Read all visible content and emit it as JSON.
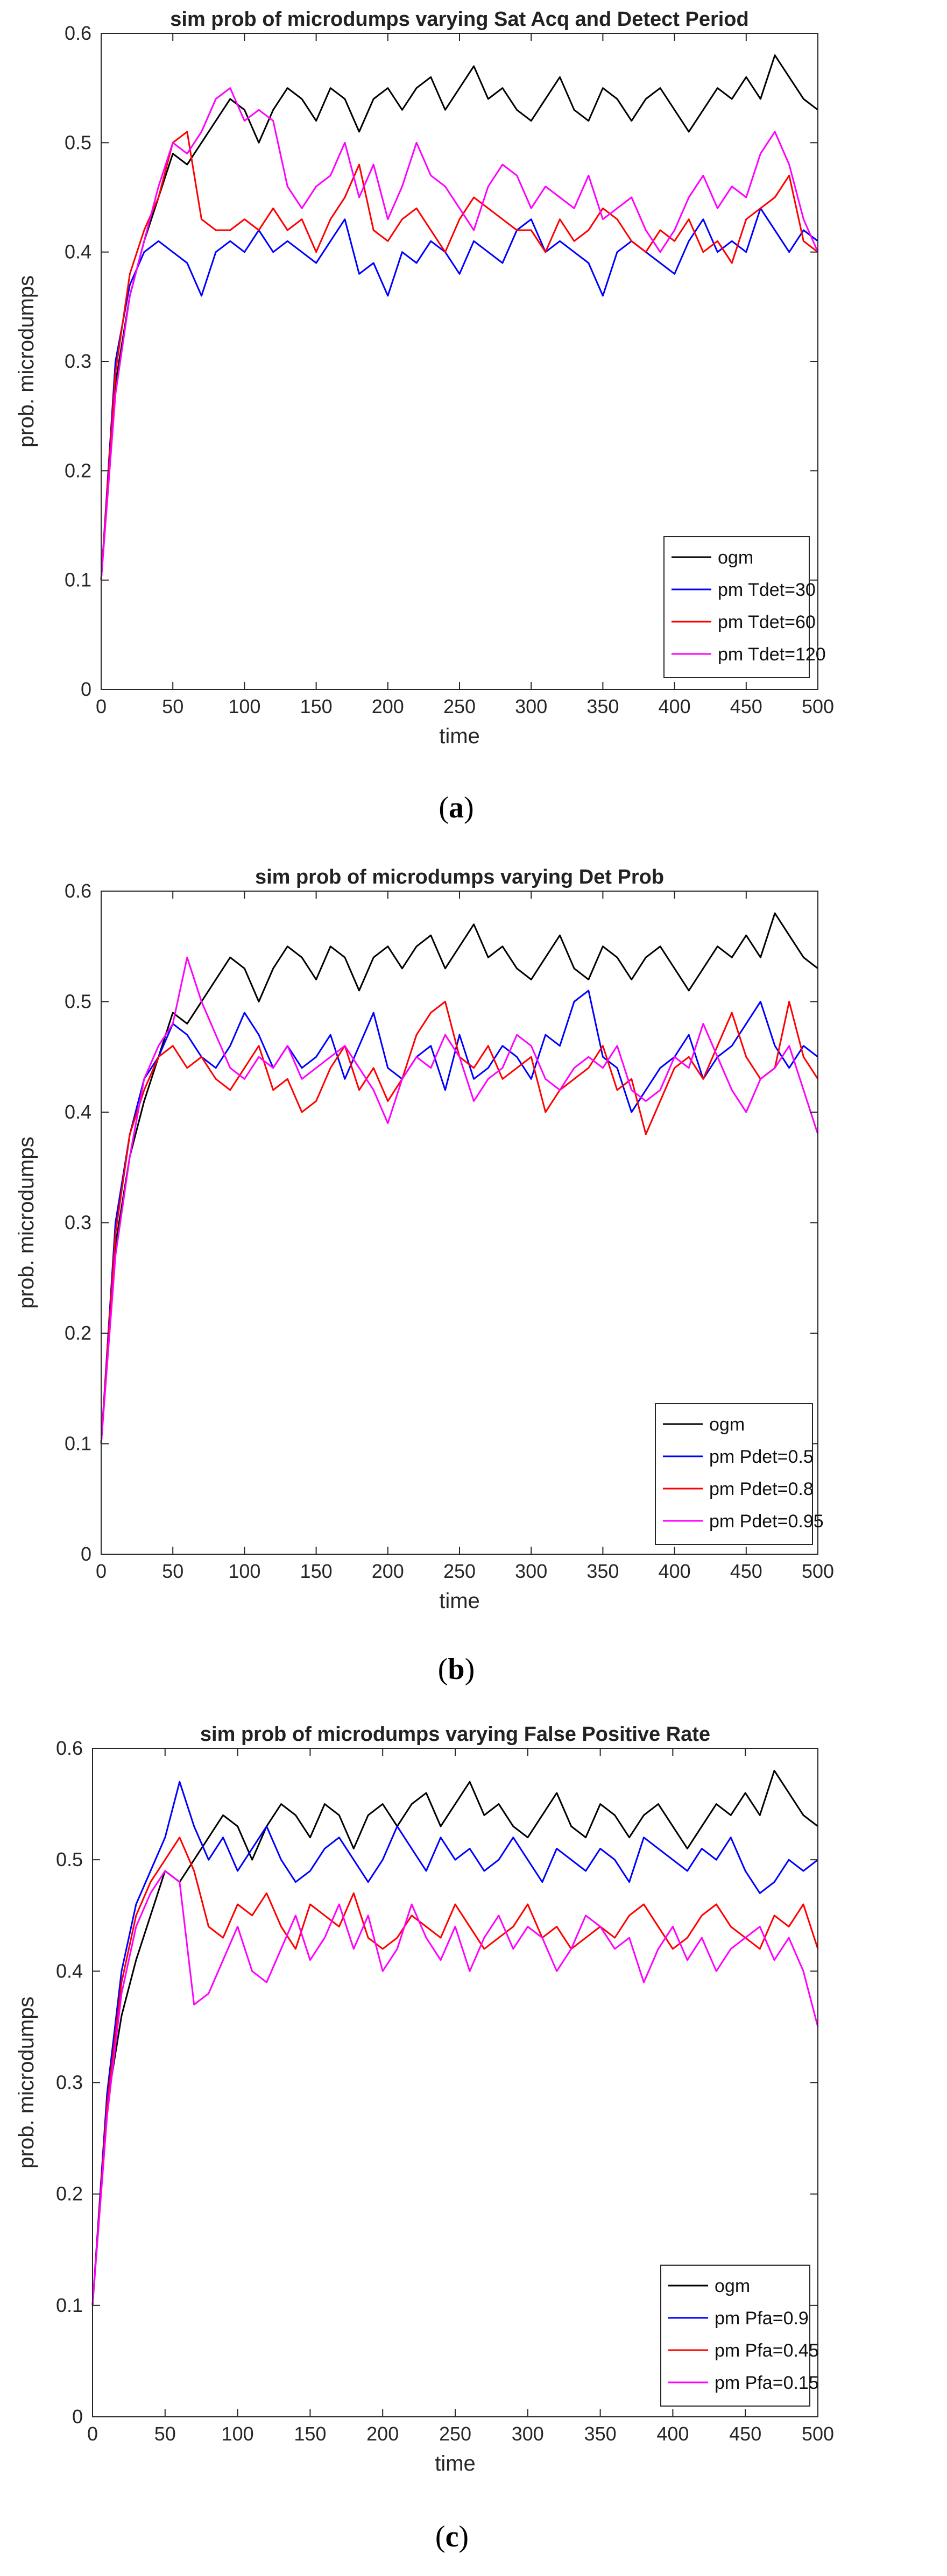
{
  "chart_data": [
    {
      "type": "line",
      "panel": "(a)",
      "caption_letter": "a",
      "title": "sim prob of microdumps varying Sat Acq and Detect Period",
      "xlabel": "time",
      "ylabel": "prob. microdumps",
      "xlim": [
        0,
        500
      ],
      "ylim": [
        0,
        0.6
      ],
      "xticks": [
        0,
        50,
        100,
        150,
        200,
        250,
        300,
        350,
        400,
        450,
        500
      ],
      "yticks": [
        0,
        0.1,
        0.2,
        0.3,
        0.4,
        0.5,
        0.6
      ],
      "legend_position": "bottom-right",
      "x": [
        0,
        10,
        20,
        30,
        40,
        50,
        60,
        70,
        80,
        90,
        100,
        110,
        120,
        130,
        140,
        150,
        160,
        170,
        180,
        190,
        200,
        210,
        220,
        230,
        240,
        250,
        260,
        270,
        280,
        290,
        300,
        310,
        320,
        330,
        340,
        350,
        360,
        370,
        380,
        390,
        400,
        410,
        420,
        430,
        440,
        450,
        460,
        470,
        480,
        490,
        500
      ],
      "series": [
        {
          "name": "ogm",
          "color": "#000000",
          "values": [
            0.1,
            0.28,
            0.36,
            0.41,
            0.45,
            0.49,
            0.48,
            0.5,
            0.52,
            0.54,
            0.53,
            0.5,
            0.53,
            0.55,
            0.54,
            0.52,
            0.55,
            0.54,
            0.51,
            0.54,
            0.55,
            0.53,
            0.55,
            0.56,
            0.53,
            0.55,
            0.57,
            0.54,
            0.55,
            0.53,
            0.52,
            0.54,
            0.56,
            0.53,
            0.52,
            0.55,
            0.54,
            0.52,
            0.54,
            0.55,
            0.53,
            0.51,
            0.53,
            0.55,
            0.54,
            0.56,
            0.54,
            0.58,
            0.56,
            0.54,
            0.53
          ]
        },
        {
          "name": "pm Tdet=30",
          "color": "#0000ff",
          "values": [
            0.1,
            0.3,
            0.37,
            0.4,
            0.41,
            0.4,
            0.39,
            0.36,
            0.4,
            0.41,
            0.4,
            0.42,
            0.4,
            0.41,
            0.4,
            0.39,
            0.41,
            0.43,
            0.38,
            0.39,
            0.36,
            0.4,
            0.39,
            0.41,
            0.4,
            0.38,
            0.41,
            0.4,
            0.39,
            0.42,
            0.43,
            0.4,
            0.41,
            0.4,
            0.39,
            0.36,
            0.4,
            0.41,
            0.4,
            0.39,
            0.38,
            0.41,
            0.43,
            0.4,
            0.41,
            0.4,
            0.44,
            0.42,
            0.4,
            0.42,
            0.41
          ]
        },
        {
          "name": "pm Tdet=60",
          "color": "#ff0000",
          "values": [
            0.1,
            0.29,
            0.38,
            0.42,
            0.45,
            0.5,
            0.51,
            0.43,
            0.42,
            0.42,
            0.43,
            0.42,
            0.44,
            0.42,
            0.43,
            0.4,
            0.43,
            0.45,
            0.48,
            0.42,
            0.41,
            0.43,
            0.44,
            0.42,
            0.4,
            0.43,
            0.45,
            0.44,
            0.43,
            0.42,
            0.42,
            0.4,
            0.43,
            0.41,
            0.42,
            0.44,
            0.43,
            0.41,
            0.4,
            0.42,
            0.41,
            0.43,
            0.4,
            0.41,
            0.39,
            0.43,
            0.44,
            0.45,
            0.47,
            0.41,
            0.4
          ]
        },
        {
          "name": "pm Tdet=120",
          "color": "#ff00ff",
          "values": [
            0.1,
            0.27,
            0.36,
            0.41,
            0.46,
            0.5,
            0.49,
            0.51,
            0.54,
            0.55,
            0.52,
            0.53,
            0.52,
            0.46,
            0.44,
            0.46,
            0.47,
            0.5,
            0.45,
            0.48,
            0.43,
            0.46,
            0.5,
            0.47,
            0.46,
            0.44,
            0.42,
            0.46,
            0.48,
            0.47,
            0.44,
            0.46,
            0.45,
            0.44,
            0.47,
            0.43,
            0.44,
            0.45,
            0.42,
            0.4,
            0.42,
            0.45,
            0.47,
            0.44,
            0.46,
            0.45,
            0.49,
            0.51,
            0.48,
            0.43,
            0.4
          ]
        }
      ]
    },
    {
      "type": "line",
      "panel": "(b)",
      "caption_letter": "b",
      "title": "sim prob of microdumps varying Det Prob",
      "xlabel": "time",
      "ylabel": "prob. microdumps",
      "xlim": [
        0,
        500
      ],
      "ylim": [
        0,
        0.6
      ],
      "xticks": [
        0,
        50,
        100,
        150,
        200,
        250,
        300,
        350,
        400,
        450,
        500
      ],
      "yticks": [
        0,
        0.1,
        0.2,
        0.3,
        0.4,
        0.5,
        0.6
      ],
      "legend_position": "bottom-right",
      "x": [
        0,
        10,
        20,
        30,
        40,
        50,
        60,
        70,
        80,
        90,
        100,
        110,
        120,
        130,
        140,
        150,
        160,
        170,
        180,
        190,
        200,
        210,
        220,
        230,
        240,
        250,
        260,
        270,
        280,
        290,
        300,
        310,
        320,
        330,
        340,
        350,
        360,
        370,
        380,
        390,
        400,
        410,
        420,
        430,
        440,
        450,
        460,
        470,
        480,
        490,
        500
      ],
      "series": [
        {
          "name": "ogm",
          "color": "#000000",
          "values": [
            0.1,
            0.28,
            0.36,
            0.41,
            0.45,
            0.49,
            0.48,
            0.5,
            0.52,
            0.54,
            0.53,
            0.5,
            0.53,
            0.55,
            0.54,
            0.52,
            0.55,
            0.54,
            0.51,
            0.54,
            0.55,
            0.53,
            0.55,
            0.56,
            0.53,
            0.55,
            0.57,
            0.54,
            0.55,
            0.53,
            0.52,
            0.54,
            0.56,
            0.53,
            0.52,
            0.55,
            0.54,
            0.52,
            0.54,
            0.55,
            0.53,
            0.51,
            0.53,
            0.55,
            0.54,
            0.56,
            0.54,
            0.58,
            0.56,
            0.54,
            0.53
          ]
        },
        {
          "name": "pm Pdet=0.5",
          "color": "#0000ff",
          "values": [
            0.1,
            0.3,
            0.38,
            0.43,
            0.45,
            0.48,
            0.47,
            0.45,
            0.44,
            0.46,
            0.49,
            0.47,
            0.44,
            0.46,
            0.44,
            0.45,
            0.47,
            0.43,
            0.46,
            0.49,
            0.44,
            0.43,
            0.45,
            0.46,
            0.42,
            0.47,
            0.43,
            0.44,
            0.46,
            0.45,
            0.43,
            0.47,
            0.46,
            0.5,
            0.51,
            0.45,
            0.44,
            0.4,
            0.42,
            0.44,
            0.45,
            0.47,
            0.43,
            0.45,
            0.46,
            0.48,
            0.5,
            0.46,
            0.44,
            0.46,
            0.45
          ]
        },
        {
          "name": "pm Pdet=0.8",
          "color": "#ff0000",
          "values": [
            0.1,
            0.29,
            0.38,
            0.42,
            0.45,
            0.46,
            0.44,
            0.45,
            0.43,
            0.42,
            0.44,
            0.46,
            0.42,
            0.43,
            0.4,
            0.41,
            0.44,
            0.46,
            0.42,
            0.44,
            0.41,
            0.43,
            0.47,
            0.49,
            0.5,
            0.45,
            0.44,
            0.46,
            0.43,
            0.44,
            0.45,
            0.4,
            0.42,
            0.43,
            0.44,
            0.46,
            0.42,
            0.43,
            0.38,
            0.41,
            0.44,
            0.45,
            0.43,
            0.46,
            0.49,
            0.45,
            0.43,
            0.44,
            0.5,
            0.45,
            0.43
          ]
        },
        {
          "name": "pm Pdet=0.95",
          "color": "#ff00ff",
          "values": [
            0.1,
            0.27,
            0.36,
            0.43,
            0.46,
            0.48,
            0.54,
            0.5,
            0.47,
            0.44,
            0.43,
            0.45,
            0.44,
            0.46,
            0.43,
            0.44,
            0.45,
            0.46,
            0.44,
            0.42,
            0.39,
            0.43,
            0.45,
            0.44,
            0.47,
            0.45,
            0.41,
            0.43,
            0.44,
            0.47,
            0.46,
            0.43,
            0.42,
            0.44,
            0.45,
            0.44,
            0.46,
            0.42,
            0.41,
            0.42,
            0.45,
            0.44,
            0.48,
            0.45,
            0.42,
            0.4,
            0.43,
            0.44,
            0.46,
            0.42,
            0.38
          ]
        }
      ]
    },
    {
      "type": "line",
      "panel": "(c)",
      "caption_letter": "c",
      "title": "sim prob of microdumps varying False Positive Rate",
      "xlabel": "time",
      "ylabel": "prob. microdumps",
      "xlim": [
        0,
        500
      ],
      "ylim": [
        0,
        0.6
      ],
      "xticks": [
        0,
        50,
        100,
        150,
        200,
        250,
        300,
        350,
        400,
        450,
        500
      ],
      "yticks": [
        0,
        0.1,
        0.2,
        0.3,
        0.4,
        0.5,
        0.6
      ],
      "legend_position": "bottom-right",
      "x": [
        0,
        10,
        20,
        30,
        40,
        50,
        60,
        70,
        80,
        90,
        100,
        110,
        120,
        130,
        140,
        150,
        160,
        170,
        180,
        190,
        200,
        210,
        220,
        230,
        240,
        250,
        260,
        270,
        280,
        290,
        300,
        310,
        320,
        330,
        340,
        350,
        360,
        370,
        380,
        390,
        400,
        410,
        420,
        430,
        440,
        450,
        460,
        470,
        480,
        490,
        500
      ],
      "series": [
        {
          "name": "ogm",
          "color": "#000000",
          "values": [
            0.1,
            0.28,
            0.36,
            0.41,
            0.45,
            0.49,
            0.48,
            0.5,
            0.52,
            0.54,
            0.53,
            0.5,
            0.53,
            0.55,
            0.54,
            0.52,
            0.55,
            0.54,
            0.51,
            0.54,
            0.55,
            0.53,
            0.55,
            0.56,
            0.53,
            0.55,
            0.57,
            0.54,
            0.55,
            0.53,
            0.52,
            0.54,
            0.56,
            0.53,
            0.52,
            0.55,
            0.54,
            0.52,
            0.54,
            0.55,
            0.53,
            0.51,
            0.53,
            0.55,
            0.54,
            0.56,
            0.54,
            0.58,
            0.56,
            0.54,
            0.53
          ]
        },
        {
          "name": "pm Pfa=0.9",
          "color": "#0000ff",
          "values": [
            0.1,
            0.29,
            0.4,
            0.46,
            0.49,
            0.52,
            0.57,
            0.53,
            0.5,
            0.52,
            0.49,
            0.51,
            0.53,
            0.5,
            0.48,
            0.49,
            0.51,
            0.52,
            0.5,
            0.48,
            0.5,
            0.53,
            0.51,
            0.49,
            0.52,
            0.5,
            0.51,
            0.49,
            0.5,
            0.52,
            0.5,
            0.48,
            0.51,
            0.5,
            0.49,
            0.51,
            0.5,
            0.48,
            0.52,
            0.51,
            0.5,
            0.49,
            0.51,
            0.5,
            0.52,
            0.49,
            0.47,
            0.48,
            0.5,
            0.49,
            0.5
          ]
        },
        {
          "name": "pm Pfa=0.45",
          "color": "#ff0000",
          "values": [
            0.1,
            0.28,
            0.39,
            0.45,
            0.48,
            0.5,
            0.52,
            0.49,
            0.44,
            0.43,
            0.46,
            0.45,
            0.47,
            0.44,
            0.42,
            0.46,
            0.45,
            0.44,
            0.47,
            0.43,
            0.42,
            0.43,
            0.45,
            0.44,
            0.43,
            0.46,
            0.44,
            0.42,
            0.43,
            0.44,
            0.46,
            0.43,
            0.44,
            0.42,
            0.43,
            0.44,
            0.43,
            0.45,
            0.46,
            0.44,
            0.42,
            0.43,
            0.45,
            0.46,
            0.44,
            0.43,
            0.42,
            0.45,
            0.44,
            0.46,
            0.42
          ]
        },
        {
          "name": "pm Pfa=0.15",
          "color": "#ff00ff",
          "values": [
            0.1,
            0.27,
            0.38,
            0.44,
            0.47,
            0.49,
            0.48,
            0.37,
            0.38,
            0.41,
            0.44,
            0.4,
            0.39,
            0.42,
            0.45,
            0.41,
            0.43,
            0.46,
            0.42,
            0.45,
            0.4,
            0.42,
            0.46,
            0.43,
            0.41,
            0.44,
            0.4,
            0.43,
            0.45,
            0.42,
            0.44,
            0.43,
            0.4,
            0.42,
            0.45,
            0.44,
            0.42,
            0.43,
            0.39,
            0.42,
            0.44,
            0.41,
            0.43,
            0.4,
            0.42,
            0.43,
            0.44,
            0.41,
            0.43,
            0.4,
            0.35
          ]
        }
      ]
    }
  ]
}
